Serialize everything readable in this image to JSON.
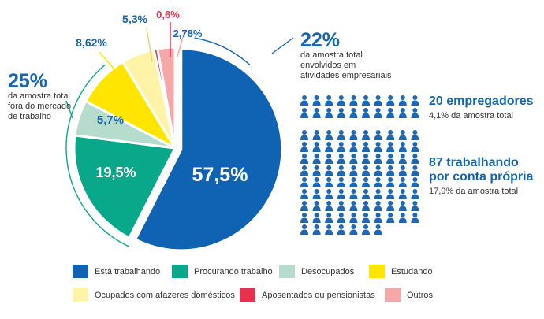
{
  "colors": {
    "trabalhando": "#0f63b2",
    "procurando": "#0aa88a",
    "desocupados": "#b5dccd",
    "estudando": "#ffe500",
    "afazeres": "#fff3a8",
    "aposentados": "#e5334d",
    "outros": "#f4a9a8",
    "accent": "#1565b4",
    "people": "#1e67b3"
  },
  "chart_data": {
    "type": "pie",
    "slices": [
      {
        "key": "trabalhando",
        "label": "Está trabalhando",
        "value": 57.5,
        "display": "57,5%"
      },
      {
        "key": "procurando",
        "label": "Procurando trabalho",
        "value": 19.5,
        "display": "19,5%"
      },
      {
        "key": "desocupados",
        "label": "Desocupados",
        "value": 5.7,
        "display": "5,7%"
      },
      {
        "key": "estudando",
        "label": "Estudando",
        "value": 8.62,
        "display": "8,62%"
      },
      {
        "key": "afazeres",
        "label": "Ocupados com afazeres domésticos",
        "value": 5.3,
        "display": "5,3%"
      },
      {
        "key": "aposentados",
        "label": "Aposentados ou pensionistas",
        "value": 0.6,
        "display": "0,6%"
      },
      {
        "key": "outros",
        "label": "Outros",
        "value": 2.78,
        "display": "2,78%"
      }
    ],
    "legend_position": "bottom"
  },
  "callouts": {
    "left": {
      "pct": "25%",
      "text": [
        "da amostra total",
        "fora do mercado",
        "de trabalho"
      ]
    },
    "right": {
      "pct": "22%",
      "text": [
        "da amostra total",
        "envolvidos em",
        "atividades empresariais"
      ]
    }
  },
  "groups": {
    "empregadores": {
      "count": 20,
      "title": "20 empregadores",
      "sub": "4,1% da amostra total"
    },
    "conta_propria": {
      "count": 87,
      "title_lines": [
        "87 trabalhando",
        "por conta própria"
      ],
      "sub": "17,9% da amostra total"
    }
  }
}
